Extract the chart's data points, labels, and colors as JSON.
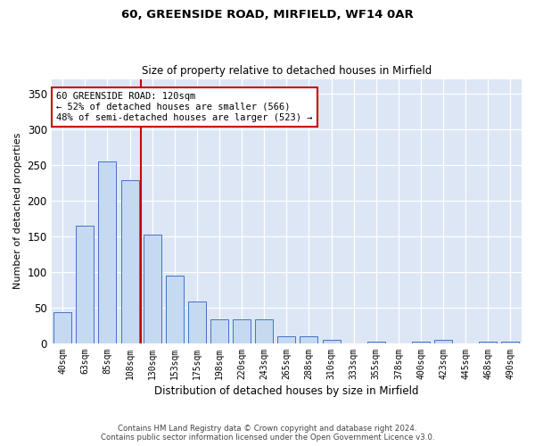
{
  "title1": "60, GREENSIDE ROAD, MIRFIELD, WF14 0AR",
  "title2": "Size of property relative to detached houses in Mirfield",
  "xlabel": "Distribution of detached houses by size in Mirfield",
  "ylabel": "Number of detached properties",
  "categories": [
    "40sqm",
    "63sqm",
    "85sqm",
    "108sqm",
    "130sqm",
    "153sqm",
    "175sqm",
    "198sqm",
    "220sqm",
    "243sqm",
    "265sqm",
    "288sqm",
    "310sqm",
    "333sqm",
    "355sqm",
    "378sqm",
    "400sqm",
    "423sqm",
    "445sqm",
    "468sqm",
    "490sqm"
  ],
  "values": [
    44,
    165,
    255,
    228,
    152,
    95,
    59,
    34,
    34,
    34,
    10,
    10,
    5,
    0,
    3,
    0,
    3,
    5,
    0,
    3,
    2
  ],
  "bar_color": "#c5d9f1",
  "bar_edge_color": "#4472c4",
  "background_color": "#dce6f5",
  "fig_background_color": "#ffffff",
  "grid_color": "#ffffff",
  "vline_color": "#cc0000",
  "annotation_text": "60 GREENSIDE ROAD: 120sqm\n← 52% of detached houses are smaller (566)\n48% of semi-detached houses are larger (523) →",
  "annotation_box_color": "#ffffff",
  "annotation_box_edge": "#cc0000",
  "ylim": [
    0,
    370
  ],
  "yticks": [
    0,
    50,
    100,
    150,
    200,
    250,
    300,
    350
  ],
  "footer1": "Contains HM Land Registry data © Crown copyright and database right 2024.",
  "footer2": "Contains public sector information licensed under the Open Government Licence v3.0."
}
